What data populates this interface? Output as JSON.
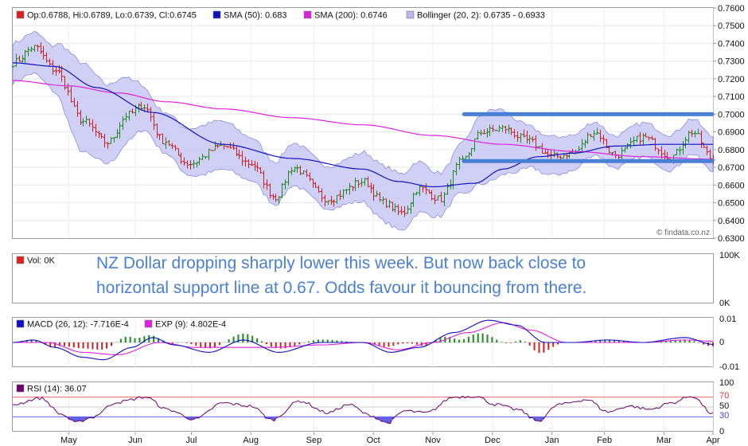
{
  "main_panel": {
    "legend": {
      "price": "Op:0.6788, Hi:0.6789, Lo:0.6739, Cl:0.6745",
      "sma50": "SMA (50): 0.683",
      "sma200": "SMA (200): 0.6746",
      "bollinger": "Bollinger (20, 2): 0.6735 - 0.6933"
    },
    "watermark": "© findata.co.nz",
    "colors": {
      "up": "#1a8a1a",
      "down": "#cc2020",
      "sma50": "#1010c0",
      "sma200": "#e020e0",
      "band_fill": "#c8c8f4",
      "band_edge": "#8c8ce0",
      "trendline": "#4a7fd6"
    }
  },
  "annotation": "NZ Dollar dropping sharply lower this week. But now back close to horizontal support line at 0.67. Odds favour it bouncing from there.",
  "volume_panel": {
    "legend": "Vol: 0K",
    "ticks": [
      "100K",
      "0K"
    ]
  },
  "macd_panel": {
    "legend_macd": "MACD (26, 12): -7.716E-4",
    "legend_exp": "EXP (9): 4.802E-4",
    "ticks": [
      "0.01",
      "0",
      "-0.01"
    ],
    "colors": {
      "macd": "#1010c0",
      "signal": "#e020e0",
      "hist_up": "#1a8a1a",
      "hist_down": "#cc2020"
    }
  },
  "rsi_panel": {
    "legend": "RSI (14): 36.07",
    "ticks": [
      "100",
      "70",
      "50",
      "30",
      "0"
    ],
    "colors": {
      "line": "#6a006a",
      "over": "#ee5050",
      "under": "#6060e8"
    }
  },
  "chart_data": {
    "type": "candlestick",
    "instrument": "NZD",
    "ylim": [
      0.63,
      0.76
    ],
    "yticks": [
      "0.7600",
      "0.7500",
      "0.7400",
      "0.7300",
      "0.7200",
      "0.7100",
      "0.7000",
      "0.6900",
      "0.6800",
      "0.6700",
      "0.6600",
      "0.6500",
      "0.6400",
      "0.6300"
    ],
    "months": [
      "May",
      "Jun",
      "Jul",
      "Aug",
      "Sep",
      "Oct",
      "Nov",
      "Dec",
      "Jan",
      "Feb",
      "Mar",
      "Apr"
    ],
    "close_anchors": [
      [
        0,
        0.729
      ],
      [
        0.03,
        0.738
      ],
      [
        0.06,
        0.725
      ],
      [
        0.1,
        0.696
      ],
      [
        0.135,
        0.684
      ],
      [
        0.165,
        0.7
      ],
      [
        0.185,
        0.705
      ],
      [
        0.215,
        0.685
      ],
      [
        0.25,
        0.672
      ],
      [
        0.3,
        0.682
      ],
      [
        0.34,
        0.672
      ],
      [
        0.375,
        0.653
      ],
      [
        0.4,
        0.67
      ],
      [
        0.45,
        0.652
      ],
      [
        0.5,
        0.662
      ],
      [
        0.53,
        0.65
      ],
      [
        0.555,
        0.644
      ],
      [
        0.58,
        0.658
      ],
      [
        0.61,
        0.652
      ],
      [
        0.64,
        0.673
      ],
      [
        0.67,
        0.69
      ],
      [
        0.7,
        0.692
      ],
      [
        0.735,
        0.685
      ],
      [
        0.77,
        0.676
      ],
      [
        0.8,
        0.678
      ],
      [
        0.83,
        0.69
      ],
      [
        0.86,
        0.677
      ],
      [
        0.9,
        0.687
      ],
      [
        0.94,
        0.676
      ],
      [
        0.97,
        0.69
      ],
      [
        1,
        0.6745
      ]
    ],
    "sma50_anchors": [
      [
        0,
        0.729
      ],
      [
        0.06,
        0.727
      ],
      [
        0.12,
        0.715
      ],
      [
        0.2,
        0.701
      ],
      [
        0.3,
        0.683
      ],
      [
        0.4,
        0.675
      ],
      [
        0.5,
        0.669
      ],
      [
        0.55,
        0.662
      ],
      [
        0.6,
        0.659
      ],
      [
        0.66,
        0.661
      ],
      [
        0.7,
        0.669
      ],
      [
        0.75,
        0.676
      ],
      [
        0.8,
        0.678
      ],
      [
        0.86,
        0.682
      ],
      [
        0.93,
        0.683
      ],
      [
        1,
        0.683
      ]
    ],
    "sma200_anchors": [
      [
        0,
        0.719
      ],
      [
        0.08,
        0.716
      ],
      [
        0.15,
        0.712
      ],
      [
        0.22,
        0.707
      ],
      [
        0.3,
        0.703
      ],
      [
        0.4,
        0.698
      ],
      [
        0.5,
        0.694
      ],
      [
        0.6,
        0.688
      ],
      [
        0.7,
        0.683
      ],
      [
        0.8,
        0.679
      ],
      [
        0.9,
        0.676
      ],
      [
        1,
        0.6746
      ]
    ],
    "bollinger_half_width_anchors": [
      [
        0,
        0.011
      ],
      [
        0.05,
        0.012
      ],
      [
        0.1,
        0.025
      ],
      [
        0.14,
        0.022
      ],
      [
        0.2,
        0.011
      ],
      [
        0.28,
        0.014
      ],
      [
        0.35,
        0.012
      ],
      [
        0.45,
        0.012
      ],
      [
        0.55,
        0.016
      ],
      [
        0.62,
        0.012
      ],
      [
        0.68,
        0.02
      ],
      [
        0.75,
        0.011
      ],
      [
        0.85,
        0.009
      ],
      [
        0.95,
        0.01
      ],
      [
        1,
        0.0099
      ]
    ],
    "trendlines": [
      {
        "label": "resistance",
        "y": 0.7,
        "x_start": 0.64,
        "x_end": 1
      },
      {
        "label": "support",
        "y": 0.6735,
        "x_start": 0.64,
        "x_end": 1
      }
    ],
    "macd_ylim": [
      -0.01,
      0.01
    ],
    "macd_anchors": [
      [
        0,
        0
      ],
      [
        0.03,
        0.001
      ],
      [
        0.06,
        -0.002
      ],
      [
        0.1,
        -0.006
      ],
      [
        0.13,
        -0.007
      ],
      [
        0.17,
        -0.002
      ],
      [
        0.2,
        0.002
      ],
      [
        0.23,
        -0.001
      ],
      [
        0.28,
        -0.004
      ],
      [
        0.33,
        0.001
      ],
      [
        0.38,
        -0.004
      ],
      [
        0.44,
        0.0
      ],
      [
        0.5,
        0.0
      ],
      [
        0.54,
        -0.004
      ],
      [
        0.58,
        -0.002
      ],
      [
        0.63,
        0.004
      ],
      [
        0.68,
        0.009
      ],
      [
        0.72,
        0.007
      ],
      [
        0.76,
        0.0
      ],
      [
        0.8,
        0.0
      ],
      [
        0.85,
        0.001
      ],
      [
        0.9,
        0.0
      ],
      [
        0.96,
        0.002
      ],
      [
        1,
        -0.0008
      ]
    ],
    "signal_anchors": [
      [
        0,
        0.0
      ],
      [
        0.05,
        0.0
      ],
      [
        0.1,
        -0.004
      ],
      [
        0.15,
        -0.005
      ],
      [
        0.21,
        0.0
      ],
      [
        0.26,
        -0.002
      ],
      [
        0.31,
        -0.002
      ],
      [
        0.37,
        -0.002
      ],
      [
        0.44,
        -0.001
      ],
      [
        0.5,
        0.0
      ],
      [
        0.55,
        -0.003
      ],
      [
        0.6,
        0.0
      ],
      [
        0.65,
        0.004
      ],
      [
        0.7,
        0.008
      ],
      [
        0.74,
        0.005
      ],
      [
        0.79,
        0.0
      ],
      [
        0.85,
        0.0
      ],
      [
        0.9,
        0.0
      ],
      [
        0.96,
        0.001
      ],
      [
        1,
        0.0005
      ]
    ],
    "rsi_ylim": [
      0,
      100
    ],
    "rsi_levels": [
      70,
      50,
      30
    ],
    "rsi_anchors": [
      [
        0,
        55
      ],
      [
        0.04,
        68
      ],
      [
        0.07,
        35
      ],
      [
        0.09,
        18
      ],
      [
        0.11,
        28
      ],
      [
        0.15,
        60
      ],
      [
        0.19,
        70
      ],
      [
        0.22,
        45
      ],
      [
        0.26,
        25
      ],
      [
        0.3,
        58
      ],
      [
        0.34,
        52
      ],
      [
        0.37,
        24
      ],
      [
        0.41,
        62
      ],
      [
        0.45,
        38
      ],
      [
        0.48,
        55
      ],
      [
        0.51,
        33
      ],
      [
        0.535,
        18
      ],
      [
        0.56,
        42
      ],
      [
        0.59,
        38
      ],
      [
        0.63,
        70
      ],
      [
        0.66,
        72
      ],
      [
        0.69,
        55
      ],
      [
        0.72,
        45
      ],
      [
        0.75,
        22
      ],
      [
        0.78,
        55
      ],
      [
        0.82,
        65
      ],
      [
        0.85,
        40
      ],
      [
        0.88,
        52
      ],
      [
        0.91,
        45
      ],
      [
        0.94,
        58
      ],
      [
        0.97,
        72
      ],
      [
        1,
        36
      ]
    ]
  }
}
